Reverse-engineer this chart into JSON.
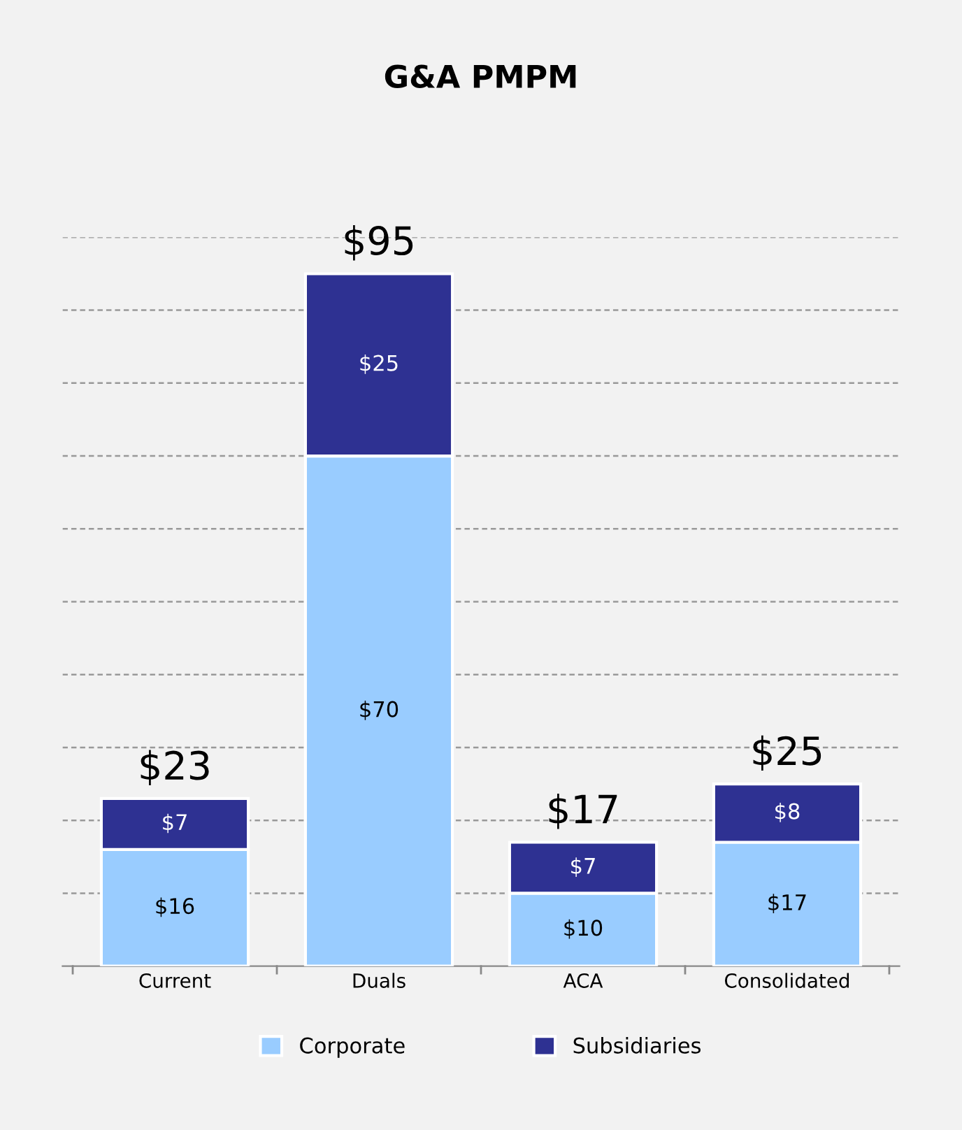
{
  "chart_data": {
    "type": "bar",
    "title": "G&A PMPM",
    "stacked": true,
    "categories": [
      "Current",
      "Duals",
      "ACA",
      "Consolidated"
    ],
    "series": [
      {
        "name": "Corporate",
        "color": "#99ccff",
        "values": [
          16,
          70,
          10,
          17
        ],
        "value_labels": [
          "$16",
          "$70",
          "$10",
          "$17"
        ]
      },
      {
        "name": "Subsidiaries",
        "color": "#2e3192",
        "values": [
          7,
          25,
          7,
          8
        ],
        "value_labels": [
          "$7",
          "$25",
          "$7",
          "$8"
        ]
      }
    ],
    "totals": [
      "$23",
      "$95",
      "$17",
      "$25"
    ],
    "ylim": [
      0,
      100
    ],
    "yticks": [
      {
        "value": 10,
        "label": null
      },
      {
        "value": 20,
        "label": null
      },
      {
        "value": 30,
        "label": null
      },
      {
        "value": 40,
        "label": null
      },
      {
        "value": 50,
        "label": null
      },
      {
        "value": 60,
        "label": null
      },
      {
        "value": 70,
        "label": null
      },
      {
        "value": 80,
        "label": null
      },
      {
        "value": 90,
        "label": null
      },
      {
        "value": 100,
        "label": null
      }
    ],
    "grid": "y",
    "legend": "bottom",
    "tick_labels": "x"
  }
}
